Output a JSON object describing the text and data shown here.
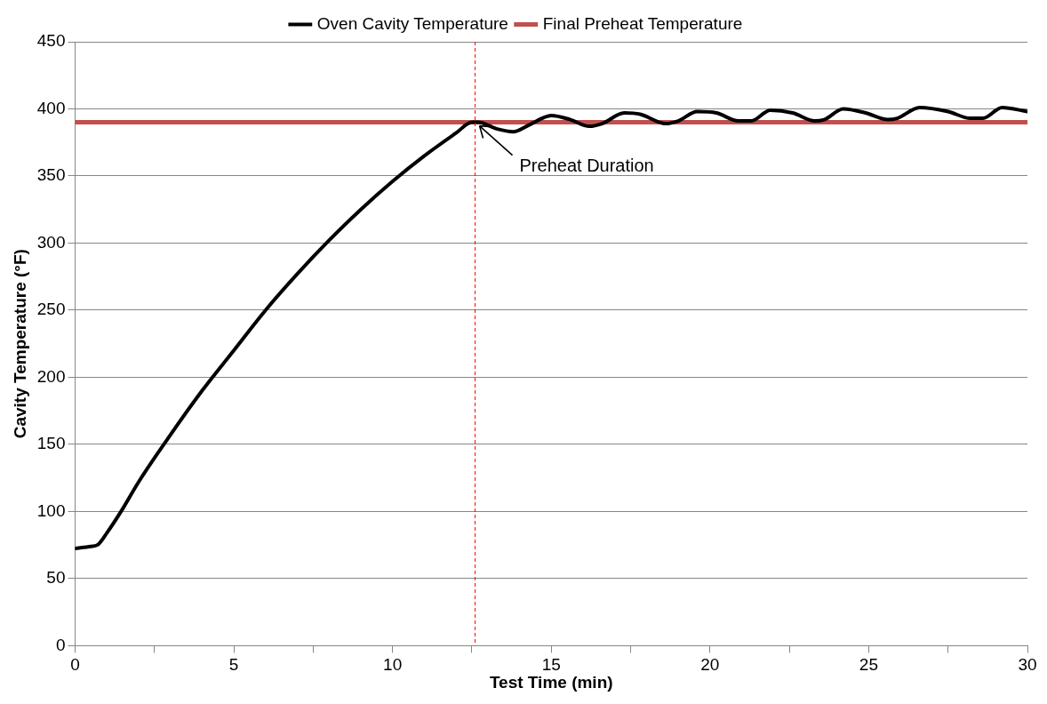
{
  "chart_data": {
    "type": "line",
    "xlabel": "Test Time (min)",
    "ylabel": "Cavity Temperature (°F)",
    "xlim": [
      0,
      30
    ],
    "xticks": [
      0,
      {
        "value": 2.5,
        "label": null
      },
      5,
      {
        "value": 7.5,
        "label": null
      },
      10,
      {
        "value": 12.5,
        "label": null
      },
      15,
      {
        "value": 17.5,
        "label": null
      },
      20,
      {
        "value": 22.5,
        "label": null
      },
      25,
      {
        "value": 27.5,
        "label": null
      },
      30
    ],
    "ylim": [
      0,
      450
    ],
    "yticks": [
      0,
      50,
      100,
      150,
      200,
      250,
      300,
      350,
      400,
      450
    ],
    "grid": "y",
    "legend": "top",
    "marker": "none",
    "series": [
      {
        "name": "Final Preheat Temperature",
        "color": "#c0504d",
        "x": [
          0,
          30
        ],
        "values": [
          390,
          390
        ]
      },
      {
        "name": "Oven Cavity Temperature",
        "color": "#000000",
        "x": [
          0,
          0.5,
          0.7,
          1,
          1.5,
          2,
          3,
          4,
          5,
          6,
          7,
          8,
          9,
          10,
          11,
          12,
          12.5,
          12.7,
          13.3,
          13.8,
          14.3,
          15,
          15.6,
          16.2,
          16.6,
          17.3,
          17.8,
          18.6,
          19,
          19.6,
          20.2,
          20.9,
          21.3,
          21.9,
          22.6,
          23.3,
          23.6,
          24.2,
          24.9,
          25.6,
          25.9,
          26.6,
          27.5,
          28.2,
          28.6,
          29.2,
          30
        ],
        "values": [
          72.5,
          74,
          75,
          84,
          102,
          122,
          157,
          190,
          220,
          250,
          277,
          302,
          325,
          346,
          365,
          382,
          390,
          390,
          385,
          383,
          388,
          395,
          392,
          387,
          389,
          397,
          396,
          389,
          391,
          398,
          397,
          391,
          391,
          399,
          397,
          391,
          392,
          400,
          397,
          392,
          393,
          401,
          398,
          393,
          393,
          401,
          398
        ]
      }
    ],
    "ref_lines": [
      {
        "axis": "x",
        "value": 12.6,
        "color": "#ff0000",
        "line_style": "dashed"
      }
    ],
    "annotations": [
      {
        "text": "Preheat Duration",
        "x": 12.6,
        "y": 390
      }
    ]
  }
}
